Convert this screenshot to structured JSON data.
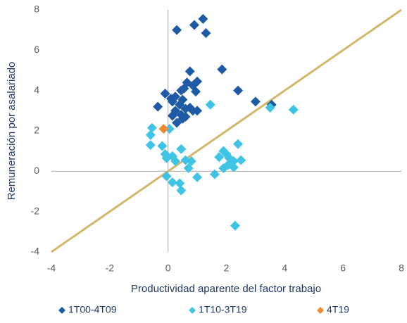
{
  "chart_data": {
    "type": "scatter",
    "x_label": "Productividad aparente del factor trabajo",
    "y_label": "Remuneración por asalariado",
    "xlim": [
      -4,
      8
    ],
    "ylim": [
      -4,
      8
    ],
    "xticks": [
      -4,
      -2,
      0,
      2,
      4,
      6,
      8
    ],
    "yticks": [
      -4,
      -2,
      0,
      2,
      4,
      6,
      8
    ],
    "reference_line": {
      "x": [
        -4,
        8
      ],
      "y": [
        -4,
        8
      ],
      "color": "#d2b86c"
    },
    "series": [
      {
        "name": "1T00-4T09",
        "color": "#1f5aa6",
        "x": [
          0.3,
          1.2,
          0.9,
          1.3,
          1.85,
          0.75,
          2.4,
          3.0,
          3.55,
          -0.35,
          -0.1,
          0.1,
          0.25,
          0.45,
          0.65,
          0.85,
          1.0,
          0.55,
          0.95,
          0.15,
          0.4,
          0.5,
          0.25,
          0.6,
          0.75,
          0.85,
          1.0,
          0.45,
          0.6,
          0.3,
          0.5,
          0.15
        ],
        "y": [
          7.0,
          7.55,
          7.25,
          6.85,
          5.05,
          4.95,
          4.0,
          3.45,
          3.3,
          3.2,
          3.85,
          3.6,
          3.7,
          4.0,
          4.4,
          4.25,
          4.45,
          4.1,
          3.95,
          3.45,
          3.3,
          3.55,
          3.0,
          3.1,
          3.15,
          3.0,
          3.0,
          2.8,
          2.7,
          2.4,
          2.6,
          2.75
        ]
      },
      {
        "name": "1T10-3T19",
        "color": "#3fc4e6",
        "x": [
          1.45,
          3.5,
          4.3,
          -0.55,
          -0.6,
          -0.6,
          -0.2,
          0.05,
          0.45,
          -0.1,
          -0.05,
          0.15,
          0.25,
          0.6,
          0.8,
          0.7,
          1.75,
          1.9,
          2.0,
          2.1,
          2.25,
          2.4,
          2.5,
          2.05,
          1.9,
          2.25,
          1.6,
          -0.05,
          0.15,
          0.4,
          0.45,
          1.0,
          2.3
        ],
        "y": [
          3.3,
          3.15,
          3.05,
          2.15,
          1.8,
          1.3,
          1.25,
          2.1,
          1.1,
          0.85,
          0.65,
          0.75,
          0.5,
          0.55,
          0.5,
          0.15,
          0.7,
          1.0,
          0.85,
          0.65,
          0.5,
          1.35,
          0.55,
          0.3,
          0.15,
          0.2,
          -0.15,
          -0.25,
          -0.55,
          -0.6,
          -0.95,
          -0.3,
          -2.7
        ]
      },
      {
        "name": "4T19",
        "color": "#f08a33",
        "x": [
          -0.15
        ],
        "y": [
          2.1
        ]
      }
    ]
  }
}
